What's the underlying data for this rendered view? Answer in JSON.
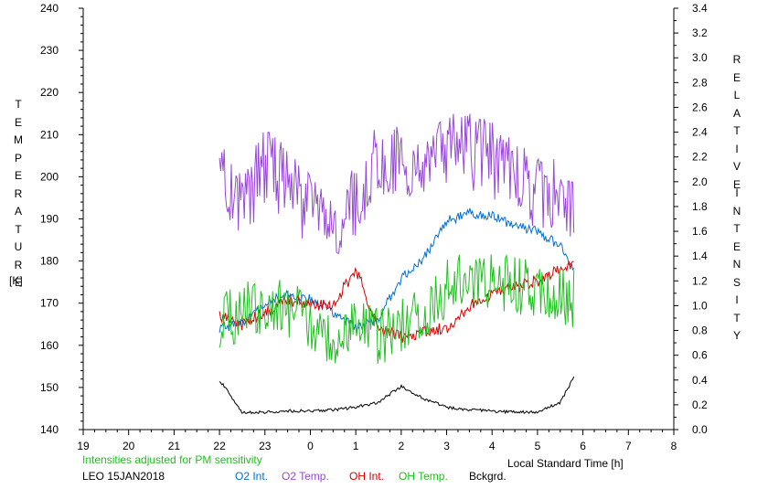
{
  "chart_data": {
    "type": "line",
    "title": "",
    "xlabel": "Local Standard Time [h]",
    "ylabel_left": "TEMPERATURE",
    "ylabel_left_unit": "[K]",
    "ylabel_right": "RELATIVE INTENSITY",
    "x_ticks": [
      "19",
      "20",
      "21",
      "22",
      "23",
      "0",
      "1",
      "2",
      "3",
      "4",
      "5",
      "6",
      "7",
      "8"
    ],
    "x_range_hours_from_19": [
      0,
      13
    ],
    "y_left_ticks": [
      140,
      150,
      160,
      170,
      180,
      190,
      200,
      210,
      220,
      230,
      240
    ],
    "ylim_left": [
      140,
      240
    ],
    "y_right_ticks": [
      "0.0",
      "0.2",
      "0.4",
      "0.6",
      "0.8",
      "1.0",
      "1.2",
      "1.4",
      "1.6",
      "1.8",
      "2.0",
      "2.2",
      "2.4",
      "2.6",
      "2.8",
      "3.0",
      "3.2",
      "3.4"
    ],
    "ylim_right": [
      0.0,
      3.4
    ],
    "grid": false,
    "note": "Intensities adjusted for PM sensitivity",
    "station": "LEO 15JAN2018",
    "series": [
      {
        "name": "O2 Int.",
        "color": "#0070d0",
        "axis": "right",
        "x": [
          "22.0",
          "22.5",
          "23.0",
          "23.5",
          "0.0",
          "0.5",
          "1.0",
          "1.5",
          "2.0",
          "2.5",
          "3.0",
          "3.5",
          "4.0",
          "4.5",
          "5.0",
          "5.5",
          "5.8"
        ],
        "values": [
          0.82,
          0.86,
          1.02,
          1.1,
          1.05,
          0.95,
          0.82,
          0.9,
          1.22,
          1.38,
          1.68,
          1.75,
          1.72,
          1.65,
          1.6,
          1.48,
          1.3
        ]
      },
      {
        "name": "O2 Temp.",
        "color": "#9848d8",
        "axis": "left",
        "x": [
          "22.0",
          "22.5",
          "23.0",
          "23.5",
          "0.0",
          "0.5",
          "1.0",
          "1.5",
          "2.0",
          "2.5",
          "3.0",
          "3.5",
          "4.0",
          "4.5",
          "5.0",
          "5.5",
          "5.8"
        ],
        "values": [
          200,
          192,
          203,
          198,
          192,
          186,
          194,
          204,
          203,
          199,
          207,
          206,
          204,
          200,
          196,
          195,
          194
        ]
      },
      {
        "name": "OH Int.",
        "color": "#d80000",
        "axis": "right",
        "x": [
          "22.0",
          "22.5",
          "23.0",
          "23.5",
          "0.0",
          "0.5",
          "1.0",
          "1.5",
          "2.0",
          "2.5",
          "3.0",
          "3.5",
          "4.0",
          "4.5",
          "5.0",
          "5.5",
          "5.8"
        ],
        "values": [
          0.92,
          0.85,
          0.95,
          1.05,
          1.0,
          1.0,
          1.3,
          0.8,
          0.75,
          0.78,
          0.82,
          1.0,
          1.1,
          1.15,
          1.2,
          1.3,
          1.32
        ]
      },
      {
        "name": "OH Temp.",
        "color": "#20c020",
        "axis": "left",
        "x": [
          "22.0",
          "22.5",
          "23.0",
          "23.5",
          "0.0",
          "0.5",
          "1.0",
          "1.5",
          "2.0",
          "2.5",
          "3.0",
          "3.5",
          "4.0",
          "4.5",
          "5.0",
          "5.5",
          "5.8"
        ],
        "values": [
          166,
          168,
          170,
          169,
          166,
          162,
          165,
          162,
          165,
          168,
          174,
          175,
          176,
          174,
          173,
          172,
          171
        ]
      },
      {
        "name": "Bckgrd.",
        "color": "#000000",
        "axis": "right",
        "x": [
          "22.0",
          "22.5",
          "23.0",
          "23.5",
          "0.0",
          "0.5",
          "1.0",
          "1.5",
          "2.0",
          "2.5",
          "3.0",
          "3.5",
          "4.0",
          "4.5",
          "5.0",
          "5.5",
          "5.8"
        ],
        "values": [
          0.4,
          0.14,
          0.14,
          0.15,
          0.15,
          0.16,
          0.18,
          0.22,
          0.35,
          0.25,
          0.18,
          0.16,
          0.15,
          0.14,
          0.14,
          0.22,
          0.42
        ]
      }
    ]
  },
  "legend": {
    "note": "Intensities adjusted for PM sensitivity",
    "station": "LEO 15JAN2018",
    "o2_int": "O2 Int.",
    "o2_temp": "O2 Temp.",
    "oh_int": "OH Int.",
    "oh_temp": "OH Temp.",
    "bckgrd": "Bckgrd."
  },
  "axis_text": {
    "left_title": "TEMPERATURE",
    "left_unit": "[K]",
    "right_title_1": "RELATIVE",
    "right_title_2": "INTENSITY",
    "x_title": "Local Standard Time [h]"
  }
}
